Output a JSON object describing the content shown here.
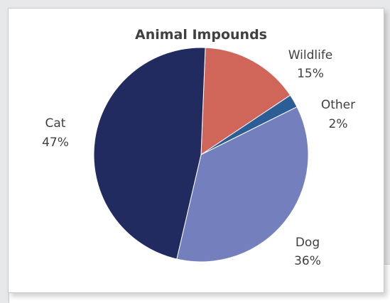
{
  "chart_data": {
    "type": "pie",
    "title": "Animal Impounds",
    "slices": [
      {
        "label": "Wildlife",
        "value": 15,
        "value_label": "15%",
        "color": "#d0655a"
      },
      {
        "label": "Other",
        "value": 2,
        "value_label": "2%",
        "color": "#2c5d94"
      },
      {
        "label": "Dog",
        "value": 36,
        "value_label": "36%",
        "color": "#7480be"
      },
      {
        "label": "Cat",
        "value": 47,
        "value_label": "47%",
        "color": "#212b60"
      }
    ]
  }
}
